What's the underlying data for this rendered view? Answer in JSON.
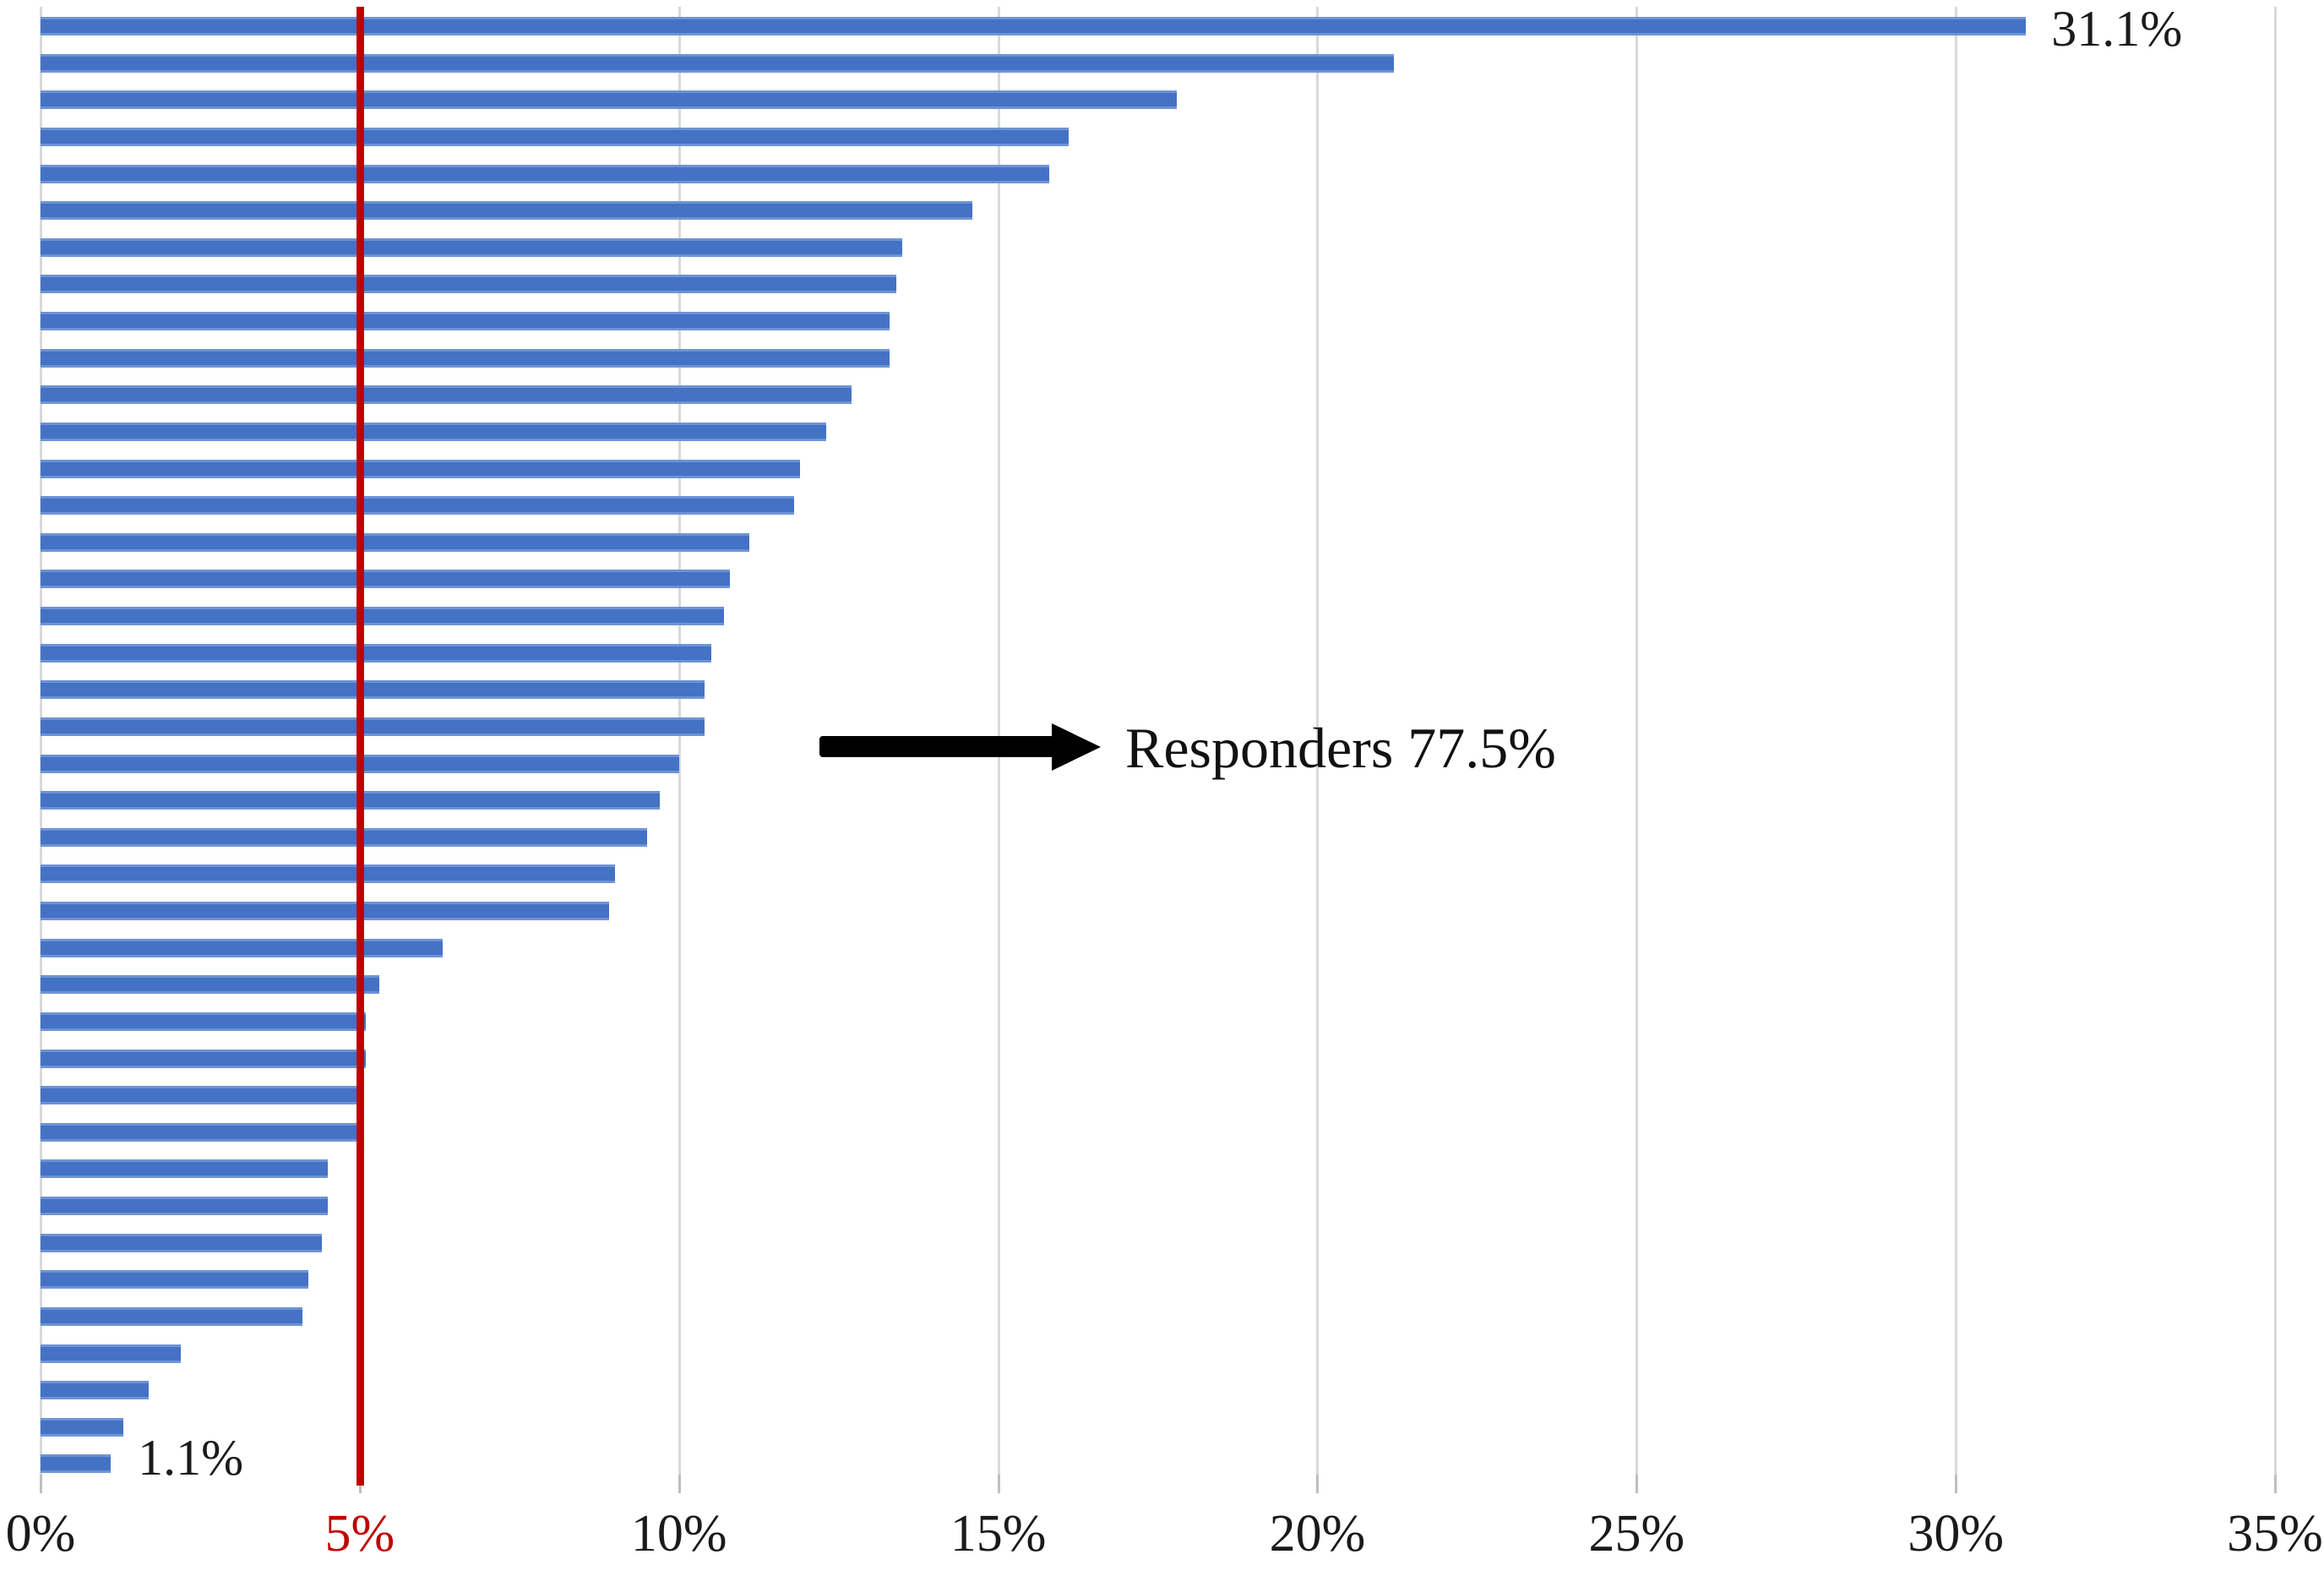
{
  "chart_data": {
    "type": "bar",
    "orientation": "horizontal",
    "title": "",
    "xlabel": "",
    "ylabel": "",
    "categories": [],
    "values": [
      31.1,
      21.2,
      17.8,
      16.1,
      15.8,
      14.6,
      13.5,
      13.4,
      13.3,
      13.3,
      12.7,
      12.3,
      11.9,
      11.8,
      11.1,
      10.8,
      10.7,
      10.5,
      10.4,
      10.4,
      10.0,
      9.7,
      9.5,
      9.0,
      8.9,
      6.3,
      5.3,
      5.1,
      5.1,
      5.0,
      5.0,
      4.5,
      4.5,
      4.4,
      4.2,
      4.1,
      2.2,
      1.7,
      1.3,
      1.1
    ],
    "xlim": [
      0,
      35
    ],
    "x_tick_values": [
      0,
      5,
      10,
      15,
      20,
      25,
      30,
      35
    ],
    "x_tick_labels": [
      "0%",
      "5%",
      "10%",
      "15%",
      "20%",
      "25%",
      "30%",
      "35%"
    ],
    "grid": "vertical",
    "legend_position": "none",
    "bar_color": "#4472C4",
    "gridline_color": "#D9D9D9",
    "axis_text_color": "#1A1A1A",
    "reference_line": {
      "value": 5,
      "color": "#C00000",
      "tick_label": "5%",
      "tick_label_color": "#C00000"
    },
    "annotations": {
      "max_bar_label": "31.1%",
      "min_bar_label": "1.1%",
      "responders_label": "Responders 77.5%"
    }
  }
}
